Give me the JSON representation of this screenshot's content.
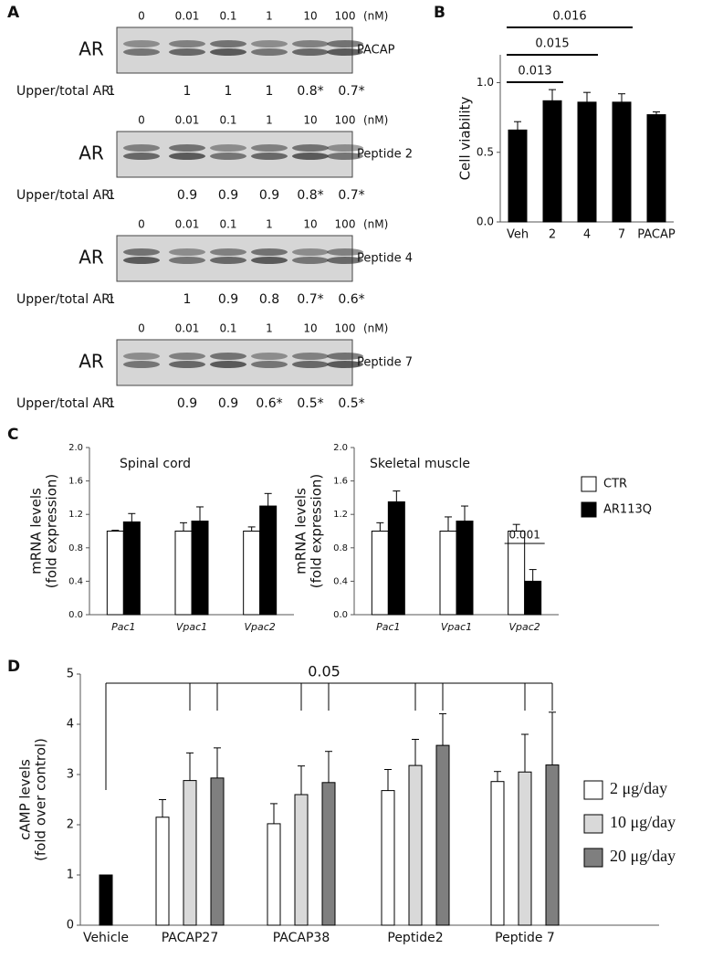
{
  "panel_labels": [
    "A",
    "B",
    "C",
    "D"
  ],
  "panel_a": {
    "concentrations": [
      "0",
      "0.01",
      "0.1",
      "1",
      "10",
      "100"
    ],
    "unit": "(nM)",
    "protein": "AR",
    "ratio_label": "Upper/total AR:",
    "blots": [
      {
        "name": "PACAP",
        "ratios": [
          "1",
          "1",
          "1",
          "1",
          "0.8*",
          "0.7*"
        ]
      },
      {
        "name": "Peptide 2",
        "ratios": [
          "1",
          "0.9",
          "0.9",
          "0.9",
          "0.8*",
          "0.7*"
        ]
      },
      {
        "name": "Peptide 4",
        "ratios": [
          "1",
          "1",
          "0.9",
          "0.8",
          "0.7*",
          "0.6*"
        ]
      },
      {
        "name": "Peptide 7",
        "ratios": [
          "1",
          "0.9",
          "0.9",
          "0.6*",
          "0.5*",
          "0.5*"
        ]
      }
    ]
  },
  "chart_data": [
    {
      "type": "bar",
      "ylabel": "Cell viability",
      "categories": [
        "Veh",
        "2",
        "4",
        "7",
        "PACAP"
      ],
      "series": [
        {
          "color": "#000000",
          "values": [
            0.66,
            0.87,
            0.86,
            0.86,
            0.77
          ],
          "errors": [
            0.06,
            0.08,
            0.07,
            0.06,
            0.02
          ]
        }
      ],
      "ylim": [
        0,
        1.2
      ],
      "yticks": [
        {
          "value": 0,
          "label": "0.0"
        },
        {
          "value": 0.5,
          "label": "0.5"
        },
        {
          "value": 1,
          "label": "1.0"
        }
      ],
      "annotations": [
        "0.013",
        "0.015",
        "0.016"
      ]
    },
    {
      "type": "bar",
      "title": "Spinal cord",
      "ylabel": [
        "mRNA levels",
        "(fold expression)"
      ],
      "categories": [
        "Pac1",
        "Vpac1",
        "Vpac2"
      ],
      "series": [
        {
          "color": "#ffffff",
          "values": [
            1,
            1,
            1
          ],
          "errors": [
            0.01,
            0.1,
            0.05
          ]
        },
        {
          "color": "#000000",
          "values": [
            1.11,
            1.12,
            1.3
          ],
          "errors": [
            0.1,
            0.17,
            0.15
          ]
        }
      ],
      "ylim": [
        0,
        2
      ],
      "yticks": [
        {
          "value": 0,
          "label": "0.0"
        },
        {
          "value": 0.4,
          "label": "0.4"
        },
        {
          "value": 0.8,
          "label": "0.8"
        },
        {
          "value": 1.2,
          "label": "1.2"
        },
        {
          "value": 1.6,
          "label": "1.6"
        },
        {
          "value": 2,
          "label": "2.0"
        }
      ]
    },
    {
      "type": "bar",
      "title": "Skeletal muscle",
      "ylabel": [
        "mRNA levels",
        "(fold expression)"
      ],
      "categories": [
        "Pac1",
        "Vpac1",
        "Vpac2"
      ],
      "series": [
        {
          "name": "CTR",
          "color": "#ffffff",
          "values": [
            1,
            1,
            1
          ],
          "errors": [
            0.1,
            0.17,
            0.08
          ]
        },
        {
          "name": "AR113Q",
          "color": "#000000",
          "values": [
            1.35,
            1.12,
            0.4
          ],
          "errors": [
            0.13,
            0.18,
            0.14
          ]
        }
      ],
      "ylim": [
        0,
        2
      ],
      "yticks": [
        {
          "value": 0,
          "label": "0.0"
        },
        {
          "value": 0.4,
          "label": "0.4"
        },
        {
          "value": 0.8,
          "label": "0.8"
        },
        {
          "value": 1.2,
          "label": "1.2"
        },
        {
          "value": 1.6,
          "label": "1.6"
        },
        {
          "value": 2,
          "label": "2.0"
        }
      ],
      "annotations": [
        "0.001"
      ],
      "legend": "right"
    },
    {
      "type": "bar",
      "ylabel": [
        "cAMP levels",
        "(fold over control)"
      ],
      "categories": [
        "Vehicle",
        "PACAP27",
        "PACAP38",
        "Peptide2",
        "Peptide 7"
      ],
      "series": [
        {
          "color": "#000000",
          "values": [
            1,
            null,
            null,
            null,
            null
          ],
          "errors": [
            null,
            null,
            null,
            null,
            null
          ]
        },
        {
          "name": "2 μg/day",
          "color": "#ffffff",
          "values": [
            null,
            2.15,
            2.02,
            2.68,
            2.86
          ],
          "errors": [
            null,
            0.35,
            0.4,
            0.42,
            0.2
          ]
        },
        {
          "name": "10 μg/day",
          "color": "#d9d9d9",
          "values": [
            null,
            2.88,
            2.6,
            3.18,
            3.05
          ],
          "errors": [
            null,
            0.55,
            0.57,
            0.52,
            0.75
          ]
        },
        {
          "name": "20 μg/day",
          "color": "#7f7f7f",
          "values": [
            null,
            2.93,
            2.84,
            3.58,
            3.19
          ],
          "errors": [
            null,
            0.6,
            0.62,
            0.63,
            1.05
          ]
        }
      ],
      "ylim": [
        0,
        5
      ],
      "yticks": [
        0,
        1,
        2,
        3,
        4,
        5
      ],
      "annotations": [
        "0.05"
      ],
      "legend": "right"
    }
  ]
}
